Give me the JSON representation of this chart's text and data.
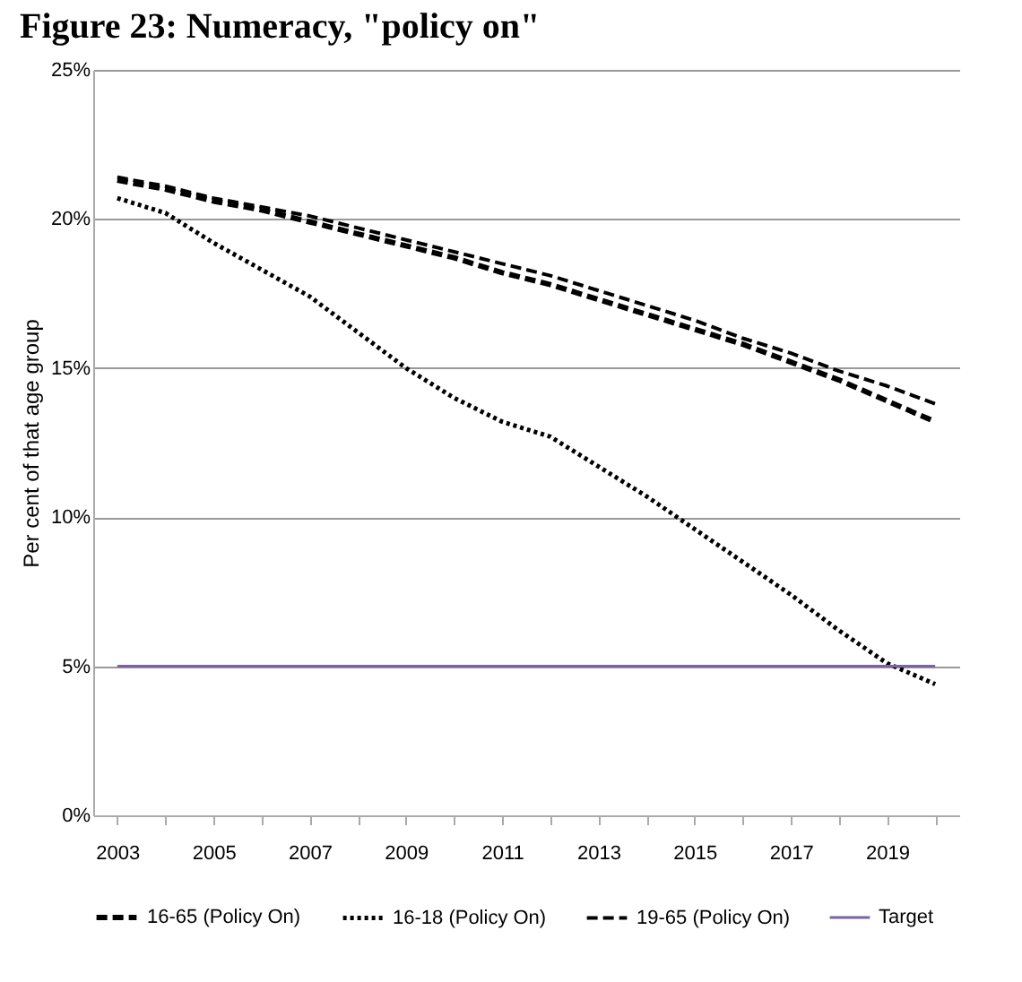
{
  "chart_data": {
    "type": "line",
    "title": "Figure 23: Numeracy, \"policy on\"",
    "ylabel": "Per cent of that age group",
    "categories": [
      "2003",
      null,
      "2005",
      null,
      "2007",
      null,
      "2009",
      null,
      "2011",
      null,
      "2013",
      null,
      "2015",
      null,
      "2017",
      null,
      "2019",
      null
    ],
    "series": [
      {
        "name": "16-65 (Policy On)",
        "color": "#000000",
        "line_style": "dashed",
        "values": [
          21.3,
          21.0,
          20.6,
          20.3,
          19.9,
          19.5,
          19.1,
          18.7,
          18.2,
          17.8,
          17.3,
          16.8,
          16.3,
          15.8,
          15.2,
          14.6,
          13.9,
          13.2
        ]
      },
      {
        "name": "16-18 (Policy On)",
        "color": "#000000",
        "line_style": "dotted",
        "values": [
          20.7,
          20.2,
          19.2,
          18.3,
          17.4,
          16.2,
          15.0,
          14.0,
          13.2,
          12.7,
          11.7,
          10.7,
          9.6,
          8.5,
          7.4,
          6.2,
          5.1,
          4.4
        ]
      },
      {
        "name": "19-65 (Policy On)",
        "color": "#000000",
        "line_style": "dashed",
        "values": [
          21.4,
          21.1,
          20.7,
          20.4,
          20.1,
          19.7,
          19.3,
          18.9,
          18.5,
          18.1,
          17.6,
          17.1,
          16.6,
          16.0,
          15.5,
          14.9,
          14.4,
          13.8
        ]
      },
      {
        "name": "Target",
        "color": "#7f63a1",
        "line_style": "solid",
        "values": [
          5,
          5,
          5,
          5,
          5,
          5,
          5,
          5,
          5,
          5,
          5,
          5,
          5,
          5,
          5,
          5,
          5,
          5
        ]
      }
    ],
    "ylim": [
      0,
      25
    ],
    "yticks": [
      {
        "value": 0,
        "label": "0%"
      },
      {
        "value": 5,
        "label": "5%"
      },
      {
        "value": 10,
        "label": "10%"
      },
      {
        "value": 15,
        "label": "15%"
      },
      {
        "value": 20,
        "label": "20%"
      },
      {
        "value": 25,
        "label": "25%"
      }
    ],
    "grid": "y",
    "legend": "bottom",
    "marker": "none"
  }
}
